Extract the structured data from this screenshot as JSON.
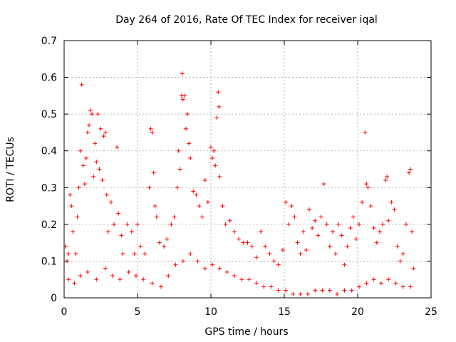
{
  "chart_data": {
    "type": "scatter",
    "title": "Day 264 of 2016, Rate Of TEC Index for receiver iqal",
    "xlabel": "GPS time / hours",
    "ylabel": "ROTI / TECUs",
    "xlim": [
      0,
      25
    ],
    "ylim": [
      0,
      0.7
    ],
    "xticks": [
      0,
      5,
      10,
      15,
      20,
      25
    ],
    "yticks": [
      0,
      0.1,
      0.2,
      0.3,
      0.4,
      0.5,
      0.6,
      0.7
    ],
    "xtick_labels": [
      "0",
      "5",
      "10",
      "15",
      "20",
      "25"
    ],
    "ytick_labels": [
      "0",
      "0.1",
      "0.2",
      "0.3",
      "0.4",
      "0.5",
      "0.6",
      "0.7"
    ],
    "grid": true,
    "marker": "+",
    "marker_color": "#ff0000",
    "series": [
      {
        "name": "ROTI",
        "points": [
          [
            0.1,
            0.14
          ],
          [
            0.2,
            0.1
          ],
          [
            0.3,
            0.12
          ],
          [
            0.4,
            0.28
          ],
          [
            0.5,
            0.25
          ],
          [
            0.6,
            0.18
          ],
          [
            0.8,
            0.12
          ],
          [
            0.9,
            0.22
          ],
          [
            1.0,
            0.3
          ],
          [
            1.1,
            0.4
          ],
          [
            1.2,
            0.58
          ],
          [
            1.3,
            0.36
          ],
          [
            1.4,
            0.31
          ],
          [
            1.5,
            0.38
          ],
          [
            1.6,
            0.45
          ],
          [
            1.7,
            0.47
          ],
          [
            1.8,
            0.51
          ],
          [
            1.9,
            0.5
          ],
          [
            2.0,
            0.33
          ],
          [
            2.1,
            0.42
          ],
          [
            2.2,
            0.37
          ],
          [
            2.3,
            0.5
          ],
          [
            2.4,
            0.35
          ],
          [
            2.5,
            0.46
          ],
          [
            2.6,
            0.32
          ],
          [
            2.7,
            0.44
          ],
          [
            2.8,
            0.45
          ],
          [
            2.9,
            0.28
          ],
          [
            3.0,
            0.18
          ],
          [
            3.2,
            0.26
          ],
          [
            3.4,
            0.2
          ],
          [
            3.6,
            0.41
          ],
          [
            3.7,
            0.23
          ],
          [
            3.9,
            0.17
          ],
          [
            4.0,
            0.12
          ],
          [
            4.3,
            0.2
          ],
          [
            4.6,
            0.18
          ],
          [
            4.8,
            0.12
          ],
          [
            5.0,
            0.2
          ],
          [
            5.2,
            0.14
          ],
          [
            5.5,
            0.12
          ],
          [
            5.8,
            0.3
          ],
          [
            5.9,
            0.46
          ],
          [
            6.0,
            0.45
          ],
          [
            6.1,
            0.34
          ],
          [
            6.2,
            0.25
          ],
          [
            6.3,
            0.22
          ],
          [
            6.5,
            0.15
          ],
          [
            6.8,
            0.14
          ],
          [
            7.0,
            0.16
          ],
          [
            7.3,
            0.2
          ],
          [
            7.5,
            0.22
          ],
          [
            7.7,
            0.3
          ],
          [
            7.8,
            0.4
          ],
          [
            7.9,
            0.35
          ],
          [
            8.0,
            0.55
          ],
          [
            8.05,
            0.61
          ],
          [
            8.1,
            0.54
          ],
          [
            8.2,
            0.55
          ],
          [
            8.3,
            0.46
          ],
          [
            8.4,
            0.5
          ],
          [
            8.5,
            0.42
          ],
          [
            8.6,
            0.38
          ],
          [
            8.8,
            0.29
          ],
          [
            9.0,
            0.28
          ],
          [
            9.2,
            0.25
          ],
          [
            9.4,
            0.22
          ],
          [
            9.6,
            0.32
          ],
          [
            9.8,
            0.26
          ],
          [
            10.0,
            0.41
          ],
          [
            10.1,
            0.38
          ],
          [
            10.2,
            0.4
          ],
          [
            10.3,
            0.36
          ],
          [
            10.4,
            0.49
          ],
          [
            10.5,
            0.56
          ],
          [
            10.55,
            0.52
          ],
          [
            10.6,
            0.33
          ],
          [
            10.8,
            0.25
          ],
          [
            11.0,
            0.2
          ],
          [
            11.3,
            0.21
          ],
          [
            11.6,
            0.18
          ],
          [
            11.9,
            0.16
          ],
          [
            12.2,
            0.15
          ],
          [
            12.5,
            0.15
          ],
          [
            12.8,
            0.14
          ],
          [
            13.1,
            0.11
          ],
          [
            13.4,
            0.18
          ],
          [
            13.7,
            0.14
          ],
          [
            14.0,
            0.12
          ],
          [
            14.3,
            0.1
          ],
          [
            14.6,
            0.09
          ],
          [
            14.9,
            0.13
          ],
          [
            15.1,
            0.26
          ],
          [
            15.3,
            0.2
          ],
          [
            15.5,
            0.25
          ],
          [
            15.7,
            0.22
          ],
          [
            15.9,
            0.15
          ],
          [
            16.1,
            0.12
          ],
          [
            16.3,
            0.18
          ],
          [
            16.5,
            0.13
          ],
          [
            16.7,
            0.24
          ],
          [
            16.9,
            0.19
          ],
          [
            17.1,
            0.21
          ],
          [
            17.3,
            0.17
          ],
          [
            17.5,
            0.22
          ],
          [
            17.7,
            0.31
          ],
          [
            17.9,
            0.2
          ],
          [
            18.1,
            0.14
          ],
          [
            18.3,
            0.18
          ],
          [
            18.5,
            0.12
          ],
          [
            18.7,
            0.2
          ],
          [
            18.9,
            0.17
          ],
          [
            19.1,
            0.09
          ],
          [
            19.3,
            0.14
          ],
          [
            19.5,
            0.19
          ],
          [
            19.7,
            0.22
          ],
          [
            19.9,
            0.16
          ],
          [
            20.1,
            0.2
          ],
          [
            20.3,
            0.26
          ],
          [
            20.5,
            0.45
          ],
          [
            20.6,
            0.31
          ],
          [
            20.7,
            0.3
          ],
          [
            20.9,
            0.25
          ],
          [
            21.1,
            0.19
          ],
          [
            21.3,
            0.15
          ],
          [
            21.5,
            0.18
          ],
          [
            21.7,
            0.2
          ],
          [
            21.9,
            0.32
          ],
          [
            22.0,
            0.33
          ],
          [
            22.1,
            0.21
          ],
          [
            22.3,
            0.26
          ],
          [
            22.5,
            0.24
          ],
          [
            22.7,
            0.14
          ],
          [
            22.9,
            0.1
          ],
          [
            23.1,
            0.12
          ],
          [
            23.3,
            0.2
          ],
          [
            23.5,
            0.34
          ],
          [
            23.6,
            0.35
          ],
          [
            23.7,
            0.18
          ],
          [
            23.8,
            0.08
          ],
          [
            0.3,
            0.05
          ],
          [
            0.7,
            0.04
          ],
          [
            1.1,
            0.06
          ],
          [
            1.6,
            0.07
          ],
          [
            2.2,
            0.05
          ],
          [
            2.8,
            0.08
          ],
          [
            3.3,
            0.06
          ],
          [
            3.8,
            0.05
          ],
          [
            4.4,
            0.07
          ],
          [
            4.9,
            0.06
          ],
          [
            5.4,
            0.05
          ],
          [
            6.0,
            0.04
          ],
          [
            6.6,
            0.03
          ],
          [
            7.1,
            0.06
          ],
          [
            7.6,
            0.09
          ],
          [
            8.1,
            0.1
          ],
          [
            8.6,
            0.12
          ],
          [
            9.1,
            0.1
          ],
          [
            9.6,
            0.08
          ],
          [
            10.1,
            0.09
          ],
          [
            10.6,
            0.08
          ],
          [
            11.1,
            0.07
          ],
          [
            11.6,
            0.06
          ],
          [
            12.1,
            0.05
          ],
          [
            12.6,
            0.05
          ],
          [
            13.1,
            0.04
          ],
          [
            13.6,
            0.03
          ],
          [
            14.1,
            0.03
          ],
          [
            14.6,
            0.02
          ],
          [
            15.1,
            0.02
          ],
          [
            15.6,
            0.01
          ],
          [
            16.1,
            0.01
          ],
          [
            16.6,
            0.01
          ],
          [
            17.1,
            0.02
          ],
          [
            17.6,
            0.02
          ],
          [
            18.1,
            0.02
          ],
          [
            18.6,
            0.01
          ],
          [
            19.1,
            0.02
          ],
          [
            19.6,
            0.02
          ],
          [
            20.1,
            0.03
          ],
          [
            20.6,
            0.04
          ],
          [
            21.1,
            0.05
          ],
          [
            21.6,
            0.04
          ],
          [
            22.1,
            0.05
          ],
          [
            22.6,
            0.04
          ],
          [
            23.1,
            0.03
          ],
          [
            23.6,
            0.03
          ]
        ]
      }
    ]
  }
}
